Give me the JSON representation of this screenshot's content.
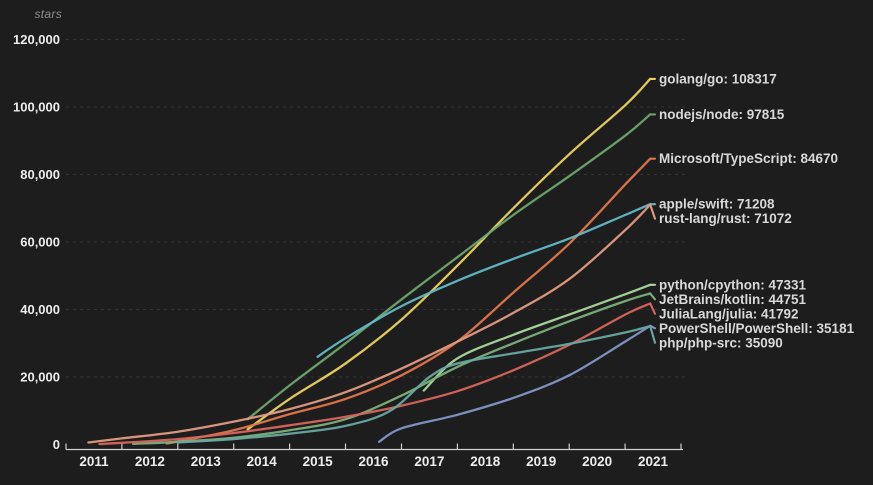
{
  "colors": {
    "background": "#1d1d1d",
    "grid": "#34342f",
    "axis": "#cfcfcf",
    "tick_text": "#ececec",
    "series_label_text": "#d8d8d8",
    "axis_title_text": "#8f8f8f"
  },
  "chart_data": {
    "type": "line",
    "title": "stars",
    "xlabel": "",
    "ylabel": "stars",
    "x_ticks": [
      2011,
      2012,
      2013,
      2014,
      2015,
      2016,
      2017,
      2018,
      2019,
      2020,
      2021
    ],
    "y_ticks": [
      0,
      20000,
      40000,
      60000,
      80000,
      100000,
      120000
    ],
    "x_range": [
      2011,
      2022
    ],
    "ylim": [
      0,
      120000
    ],
    "grid": "horizontal-dashed",
    "legend_position": "right-end-labels",
    "series": [
      {
        "id": "golang-go",
        "label": "golang/go",
        "value": 108317,
        "color": "#e9d35e",
        "points": [
          [
            2014.25,
            4500
          ],
          [
            2015,
            13500
          ],
          [
            2016,
            24000
          ],
          [
            2017,
            37000
          ],
          [
            2018,
            53000
          ],
          [
            2019,
            70000
          ],
          [
            2020,
            86000
          ],
          [
            2021,
            100500
          ],
          [
            2021.45,
            108317
          ]
        ]
      },
      {
        "id": "nodejs-node",
        "label": "nodejs/node",
        "value": 97815,
        "color": "#6da56d",
        "points": [
          [
            2014.25,
            7500
          ],
          [
            2015,
            17500
          ],
          [
            2016,
            30000
          ],
          [
            2017,
            43000
          ],
          [
            2018,
            55500
          ],
          [
            2019,
            68000
          ],
          [
            2020,
            79500
          ],
          [
            2021,
            91500
          ],
          [
            2021.45,
            97815
          ]
        ]
      },
      {
        "id": "microsoft-typescript",
        "label": "Microsoft/TypeScript",
        "value": 84670,
        "color": "#e0764b",
        "points": [
          [
            2012.8,
            300
          ],
          [
            2013,
            900
          ],
          [
            2014,
            4200
          ],
          [
            2015,
            9000
          ],
          [
            2016,
            13500
          ],
          [
            2017,
            20500
          ],
          [
            2018,
            30500
          ],
          [
            2019,
            45000
          ],
          [
            2020,
            59500
          ],
          [
            2021,
            77000
          ],
          [
            2021.45,
            84670
          ]
        ]
      },
      {
        "id": "apple-swift",
        "label": "apple/swift",
        "value": 71208,
        "color": "#63b8c6",
        "points": [
          [
            2015.5,
            26000
          ],
          [
            2016,
            31500
          ],
          [
            2017,
            41000
          ],
          [
            2018,
            48500
          ],
          [
            2019,
            55000
          ],
          [
            2020,
            61000
          ],
          [
            2021,
            68000
          ],
          [
            2021.45,
            71208
          ]
        ]
      },
      {
        "id": "rust-lang-rust",
        "label": "rust-lang/rust",
        "value": 71072,
        "color": "#e29a82",
        "points": [
          [
            2011.4,
            600
          ],
          [
            2012,
            1800
          ],
          [
            2013,
            3800
          ],
          [
            2014,
            6800
          ],
          [
            2015,
            10500
          ],
          [
            2016,
            15500
          ],
          [
            2017,
            22500
          ],
          [
            2018,
            30500
          ],
          [
            2019,
            39000
          ],
          [
            2020,
            49000
          ],
          [
            2021,
            63500
          ],
          [
            2021.45,
            71072
          ]
        ]
      },
      {
        "id": "python-cpython",
        "label": "python/cpython",
        "value": 47331,
        "color": "#a9d89b",
        "points": [
          [
            2017.4,
            16000
          ],
          [
            2018,
            25500
          ],
          [
            2019,
            32500
          ],
          [
            2020,
            38500
          ],
          [
            2021,
            44500
          ],
          [
            2021.45,
            47331
          ]
        ]
      },
      {
        "id": "jetbrains-kotlin",
        "label": "JetBrains/kotlin",
        "value": 44751,
        "color": "#7cb07c",
        "points": [
          [
            2012.2,
            200
          ],
          [
            2013,
            800
          ],
          [
            2014,
            2000
          ],
          [
            2015,
            4200
          ],
          [
            2016,
            7500
          ],
          [
            2017,
            14500
          ],
          [
            2018,
            23000
          ],
          [
            2019,
            30000
          ],
          [
            2020,
            36500
          ],
          [
            2021,
            42500
          ],
          [
            2021.45,
            44751
          ]
        ]
      },
      {
        "id": "julialang-julia",
        "label": "JuliaLang/julia",
        "value": 41792,
        "color": "#d8655c",
        "points": [
          [
            2011.6,
            150
          ],
          [
            2012,
            500
          ],
          [
            2013,
            1600
          ],
          [
            2014,
            3400
          ],
          [
            2015,
            5700
          ],
          [
            2016,
            8200
          ],
          [
            2017,
            11500
          ],
          [
            2018,
            15800
          ],
          [
            2019,
            22000
          ],
          [
            2020,
            29500
          ],
          [
            2021,
            38500
          ],
          [
            2021.45,
            41792
          ]
        ]
      },
      {
        "id": "powershell-powershell",
        "label": "PowerShell/PowerShell",
        "value": 35181,
        "color": "#8296c6",
        "points": [
          [
            2016.6,
            800
          ],
          [
            2017,
            4800
          ],
          [
            2018,
            8800
          ],
          [
            2019,
            13800
          ],
          [
            2020,
            20500
          ],
          [
            2021,
            30500
          ],
          [
            2021.45,
            35181
          ]
        ]
      },
      {
        "id": "php-php-src",
        "label": "php/php-src",
        "value": 35090,
        "color": "#68a9a2",
        "points": [
          [
            2013,
            600
          ],
          [
            2014,
            1600
          ],
          [
            2015,
            3200
          ],
          [
            2016,
            5500
          ],
          [
            2016.8,
            10000
          ],
          [
            2017.5,
            20000
          ],
          [
            2018,
            24000
          ],
          [
            2019,
            27000
          ],
          [
            2020,
            29800
          ],
          [
            2021,
            33200
          ],
          [
            2021.45,
            35090
          ]
        ]
      }
    ]
  }
}
